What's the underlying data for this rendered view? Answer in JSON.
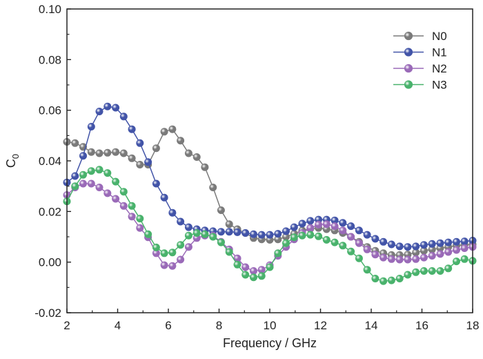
{
  "chart_data": {
    "type": "line",
    "title": "",
    "xlabel": "Frequency / GHz",
    "ylabel_main": "C",
    "ylabel_sub": "0",
    "xlim": [
      2,
      18
    ],
    "ylim": [
      -0.02,
      0.1
    ],
    "xticks": [
      2,
      4,
      6,
      8,
      10,
      12,
      14,
      16,
      18
    ],
    "yticks": [
      -0.02,
      0.0,
      0.02,
      0.04,
      0.06,
      0.08,
      0.1
    ],
    "xtick_labels": [
      "2",
      "4",
      "6",
      "8",
      "10",
      "12",
      "14",
      "16",
      "18"
    ],
    "ytick_labels": [
      "-0.02",
      "0.00",
      "0.02",
      "0.04",
      "0.06",
      "0.08",
      "0.10"
    ],
    "grid": false,
    "legend_position": "top-right",
    "x": [
      2.0,
      2.32,
      2.64,
      2.96,
      3.28,
      3.6,
      3.92,
      4.24,
      4.56,
      4.88,
      5.2,
      5.52,
      5.84,
      6.16,
      6.48,
      6.8,
      7.12,
      7.44,
      7.76,
      8.08,
      8.4,
      8.72,
      9.04,
      9.36,
      9.68,
      10.0,
      10.32,
      10.64,
      10.96,
      11.28,
      11.6,
      11.92,
      12.24,
      12.56,
      12.88,
      13.2,
      13.52,
      13.84,
      14.16,
      14.48,
      14.8,
      15.12,
      15.44,
      15.76,
      16.08,
      16.4,
      16.72,
      17.04,
      17.36,
      17.68,
      18.0
    ],
    "series": [
      {
        "name": "N0",
        "color": "#7a7a7a",
        "values": [
          0.0475,
          0.047,
          0.0455,
          0.0435,
          0.043,
          0.0432,
          0.0435,
          0.043,
          0.041,
          0.0385,
          0.0385,
          0.045,
          0.0515,
          0.0525,
          0.048,
          0.043,
          0.0415,
          0.0375,
          0.0295,
          0.0205,
          0.015,
          0.013,
          0.0115,
          0.0095,
          0.009,
          0.0088,
          0.009,
          0.01,
          0.0112,
          0.0125,
          0.0132,
          0.0135,
          0.013,
          0.0125,
          0.0115,
          0.01,
          0.008,
          0.006,
          0.0045,
          0.0035,
          0.0028,
          0.0028,
          0.003,
          0.0038,
          0.0045,
          0.005,
          0.0055,
          0.006,
          0.0065,
          0.0068,
          0.007
        ]
      },
      {
        "name": "N1",
        "color": "#4254a8",
        "values": [
          0.0315,
          0.034,
          0.042,
          0.0535,
          0.0595,
          0.0615,
          0.061,
          0.0575,
          0.0525,
          0.047,
          0.0395,
          0.031,
          0.0255,
          0.0195,
          0.016,
          0.0138,
          0.013,
          0.0125,
          0.0122,
          0.012,
          0.012,
          0.0118,
          0.0115,
          0.011,
          0.0108,
          0.0108,
          0.0112,
          0.0122,
          0.0138,
          0.0152,
          0.0163,
          0.0168,
          0.0168,
          0.0165,
          0.0155,
          0.0142,
          0.0125,
          0.0108,
          0.0092,
          0.008,
          0.007,
          0.0062,
          0.006,
          0.0062,
          0.0068,
          0.0072,
          0.0075,
          0.0078,
          0.008,
          0.0082,
          0.0085
        ]
      },
      {
        "name": "N2",
        "color": "#9a6ab8",
        "values": [
          0.0265,
          0.0295,
          0.031,
          0.031,
          0.0295,
          0.0272,
          0.025,
          0.0222,
          0.018,
          0.0135,
          0.0098,
          0.0035,
          -0.0012,
          -0.0015,
          0.001,
          0.006,
          0.0095,
          0.0105,
          0.0105,
          0.008,
          0.005,
          0.0015,
          -0.002,
          -0.0035,
          -0.003,
          -0.0012,
          0.0025,
          0.006,
          0.009,
          0.0115,
          0.0135,
          0.0148,
          0.015,
          0.0142,
          0.0125,
          0.01,
          0.0075,
          0.005,
          0.003,
          0.0018,
          0.0012,
          0.001,
          0.001,
          0.0012,
          0.0018,
          0.0025,
          0.0032,
          0.004,
          0.0048,
          0.0055,
          0.006
        ]
      },
      {
        "name": "N3",
        "color": "#49b26c",
        "values": [
          0.024,
          0.03,
          0.0345,
          0.036,
          0.0365,
          0.0352,
          0.0318,
          0.0278,
          0.0222,
          0.0172,
          0.011,
          0.0058,
          0.0035,
          0.0038,
          0.0068,
          0.0105,
          0.0115,
          0.011,
          0.01,
          0.0078,
          0.004,
          -0.001,
          -0.005,
          -0.006,
          -0.0055,
          -0.002,
          0.0035,
          0.0075,
          0.0098,
          0.0105,
          0.0108,
          0.0102,
          0.0088,
          0.0078,
          0.0065,
          0.0042,
          0.0015,
          -0.003,
          -0.0065,
          -0.0075,
          -0.0072,
          -0.0065,
          -0.005,
          -0.004,
          -0.0035,
          -0.0035,
          -0.0035,
          -0.0025,
          0.0003,
          0.0012,
          0.0005
        ]
      }
    ]
  }
}
